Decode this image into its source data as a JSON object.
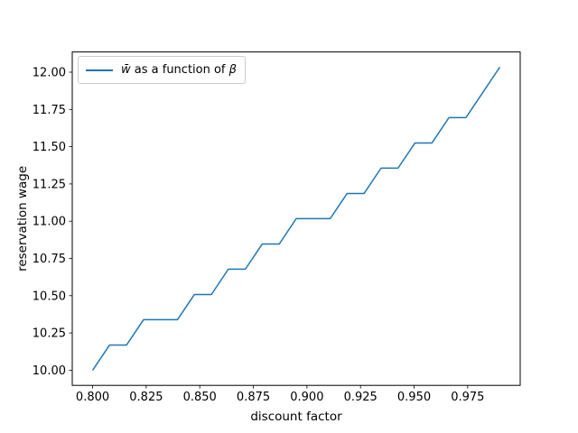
{
  "figure": {
    "background": "#ffffff"
  },
  "legend": {
    "label": "w̄ as a function of β",
    "label_w": "w̄",
    "label_mid": " as a function of ",
    "label_beta": "β",
    "line_color": "#1f77b4",
    "position": "upper left"
  },
  "chart_data": {
    "type": "line",
    "title": "",
    "xlabel": "discount factor",
    "ylabel": "reservation wage",
    "grid": false,
    "legend_position": "upper left",
    "xlim": [
      0.7905,
      0.9995
    ],
    "ylim": [
      9.8983,
      12.1356
    ],
    "x_ticks": [
      {
        "value": 0.8,
        "label": "0.800"
      },
      {
        "value": 0.825,
        "label": "0.825"
      },
      {
        "value": 0.85,
        "label": "0.850"
      },
      {
        "value": 0.875,
        "label": "0.875"
      },
      {
        "value": 0.9,
        "label": "0.900"
      },
      {
        "value": 0.925,
        "label": "0.925"
      },
      {
        "value": 0.95,
        "label": "0.950"
      },
      {
        "value": 0.975,
        "label": "0.975"
      }
    ],
    "y_ticks": [
      {
        "value": 10.0,
        "label": "10.00"
      },
      {
        "value": 10.25,
        "label": "10.25"
      },
      {
        "value": 10.5,
        "label": "10.50"
      },
      {
        "value": 10.75,
        "label": "10.75"
      },
      {
        "value": 11.0,
        "label": "11.00"
      },
      {
        "value": 11.25,
        "label": "11.25"
      },
      {
        "value": 11.5,
        "label": "11.50"
      },
      {
        "value": 11.75,
        "label": "11.75"
      },
      {
        "value": 12.0,
        "label": "12.00"
      }
    ],
    "x": [
      0.8,
      0.80792,
      0.81583,
      0.82375,
      0.83167,
      0.83958,
      0.8475,
      0.85542,
      0.86333,
      0.87125,
      0.87917,
      0.88708,
      0.895,
      0.90292,
      0.91083,
      0.91875,
      0.92667,
      0.93458,
      0.9425,
      0.95042,
      0.95833,
      0.96625,
      0.97417,
      0.98208,
      0.99
    ],
    "series": [
      {
        "name": "w̄ as a function of β",
        "color": "#1f77b4",
        "values": [
          10.0,
          10.169,
          10.169,
          10.339,
          10.339,
          10.339,
          10.508,
          10.508,
          10.678,
          10.678,
          10.847,
          10.847,
          11.017,
          11.017,
          11.017,
          11.186,
          11.186,
          11.356,
          11.356,
          11.525,
          11.525,
          11.695,
          11.695,
          11.864,
          12.034
        ]
      }
    ]
  }
}
